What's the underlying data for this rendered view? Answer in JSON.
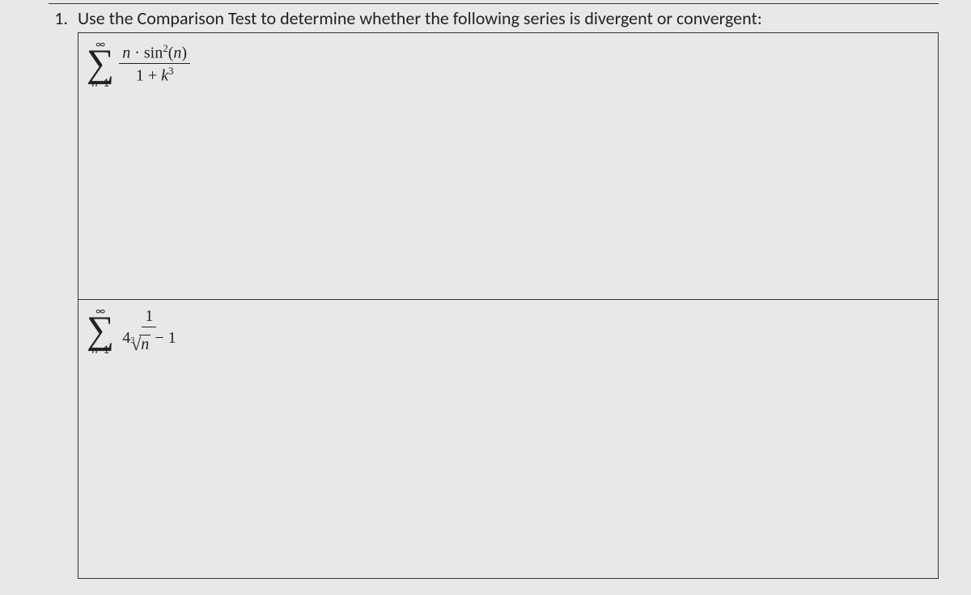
{
  "question": {
    "number": "1.",
    "text": "Use the Comparison Test to determine whether the following series is divergent or convergent:"
  },
  "series1": {
    "sigma_top": "∞",
    "sigma_bottom_var": "n",
    "sigma_bottom_eq": "=1",
    "numerator_n": "n",
    "numerator_dot": " · ",
    "numerator_sin": "sin",
    "numerator_exp": "2",
    "numerator_paren_open": "(",
    "numerator_arg": "n",
    "numerator_paren_close": ")",
    "denominator_one": "1 + ",
    "denominator_k": "k",
    "denominator_exp": "3"
  },
  "series2": {
    "sigma_top": "∞",
    "sigma_bottom_var": "n",
    "sigma_bottom_eq": "=1",
    "numerator": "1",
    "denom_coeff": "4",
    "denom_root_index": "3",
    "denom_root_sym": "√",
    "denom_root_arg": "n",
    "denom_minus": " − 1"
  },
  "colors": {
    "text": "#222222",
    "border": "#333333",
    "background": "#e8e8e8",
    "page_bg": "#d8d8d8"
  },
  "typography": {
    "body_fontsize": 22,
    "sigma_fontsize": 48,
    "limits_fontsize": 14,
    "fraction_fontsize": 20
  }
}
